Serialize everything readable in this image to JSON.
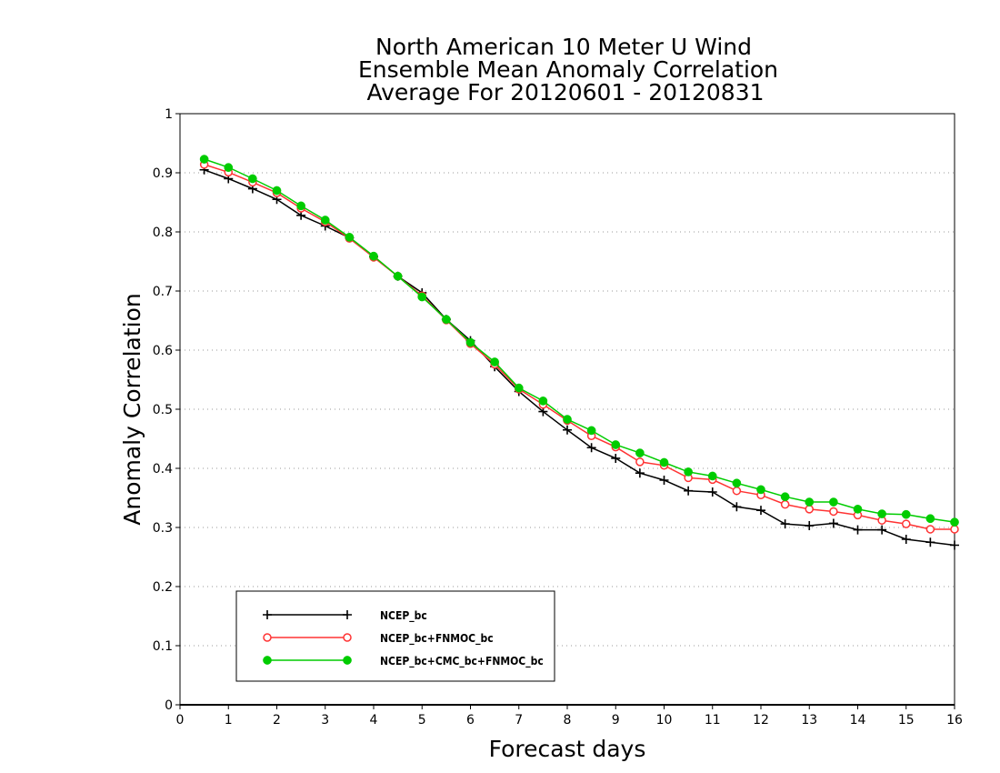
{
  "chart_data": {
    "type": "line",
    "title": [
      "North American 10 Meter U Wind",
      "Ensemble Mean Anomaly Correlation",
      "Average For 20120601 - 20120831"
    ],
    "xlabel": "Forecast days",
    "ylabel": "Anomaly Correlation",
    "xlim": [
      0,
      16
    ],
    "ylim": [
      0,
      1
    ],
    "xticks": [
      0,
      1,
      2,
      3,
      4,
      5,
      6,
      7,
      8,
      9,
      10,
      11,
      12,
      13,
      14,
      15,
      16
    ],
    "yticks": [
      0,
      0.1,
      0.2,
      0.3,
      0.4,
      0.5,
      0.6,
      0.7,
      0.8,
      0.9,
      1
    ],
    "ytick_labels": [
      "0",
      "0.1",
      "0.2",
      "0.3",
      "0.4",
      "0.5",
      "0.6",
      "0.7",
      "0.8",
      "0.9",
      "1"
    ],
    "grid": "horizontal-dotted",
    "legend_position": "bottom-left",
    "x": [
      0.5,
      1,
      1.5,
      2,
      2.5,
      3,
      3.5,
      4,
      4.5,
      5,
      5.5,
      6,
      6.5,
      7,
      7.5,
      8,
      8.5,
      9,
      9.5,
      10,
      10.5,
      11,
      11.5,
      12,
      12.5,
      13,
      13.5,
      14,
      14.5,
      15,
      15.5,
      16
    ],
    "series": [
      {
        "name": "NCEP_bc",
        "color": "#000000",
        "marker": "plus",
        "values": [
          0.905,
          0.89,
          0.873,
          0.855,
          0.828,
          0.81,
          0.79,
          0.758,
          0.725,
          0.697,
          0.652,
          0.616,
          0.572,
          0.53,
          0.496,
          0.465,
          0.435,
          0.417,
          0.392,
          0.38,
          0.362,
          0.36,
          0.335,
          0.329,
          0.306,
          0.303,
          0.307,
          0.296,
          0.296,
          0.28,
          0.275,
          0.27
        ]
      },
      {
        "name": "NCEP_bc+FNMOC_bc",
        "color": "#ff3333",
        "marker": "open-circle",
        "values": [
          0.914,
          0.901,
          0.884,
          0.866,
          0.84,
          0.817,
          0.789,
          0.757,
          0.725,
          0.692,
          0.651,
          0.611,
          0.576,
          0.534,
          0.508,
          0.481,
          0.455,
          0.436,
          0.411,
          0.405,
          0.384,
          0.381,
          0.362,
          0.355,
          0.339,
          0.331,
          0.327,
          0.321,
          0.312,
          0.306,
          0.297,
          0.297
        ]
      },
      {
        "name": "NCEP_bc+CMC_bc+FNMOC_bc",
        "color": "#00cc00",
        "marker": "filled-circle",
        "values": [
          0.923,
          0.909,
          0.89,
          0.87,
          0.844,
          0.82,
          0.791,
          0.759,
          0.725,
          0.69,
          0.652,
          0.613,
          0.58,
          0.536,
          0.514,
          0.483,
          0.464,
          0.44,
          0.426,
          0.41,
          0.394,
          0.387,
          0.375,
          0.364,
          0.352,
          0.343,
          0.343,
          0.331,
          0.323,
          0.322,
          0.315,
          0.309
        ]
      }
    ]
  }
}
